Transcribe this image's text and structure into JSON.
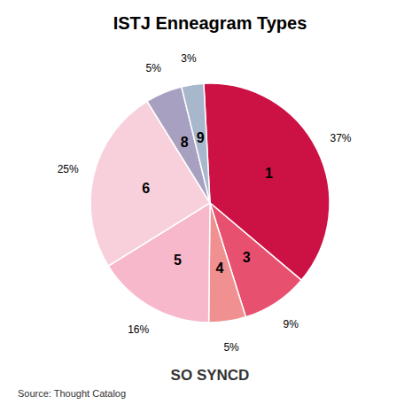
{
  "chart_data": {
    "type": "pie",
    "title": "ISTJ Enneagram Types",
    "categories": [
      "1",
      "3",
      "4",
      "5",
      "6",
      "8",
      "9"
    ],
    "values": [
      37,
      9,
      5,
      16,
      25,
      5,
      3
    ],
    "value_labels": [
      "37%",
      "9%",
      "5%",
      "16%",
      "25%",
      "5%",
      "3%"
    ],
    "colors": [
      "#CC1244",
      "#E85070",
      "#F09090",
      "#F8B8CC",
      "#F8D0DC",
      "#A8A0C0",
      "#A8B8CC"
    ],
    "data_labels": true,
    "annotations": [
      "SO SYNCD",
      "Source: Thought Catalog"
    ]
  }
}
